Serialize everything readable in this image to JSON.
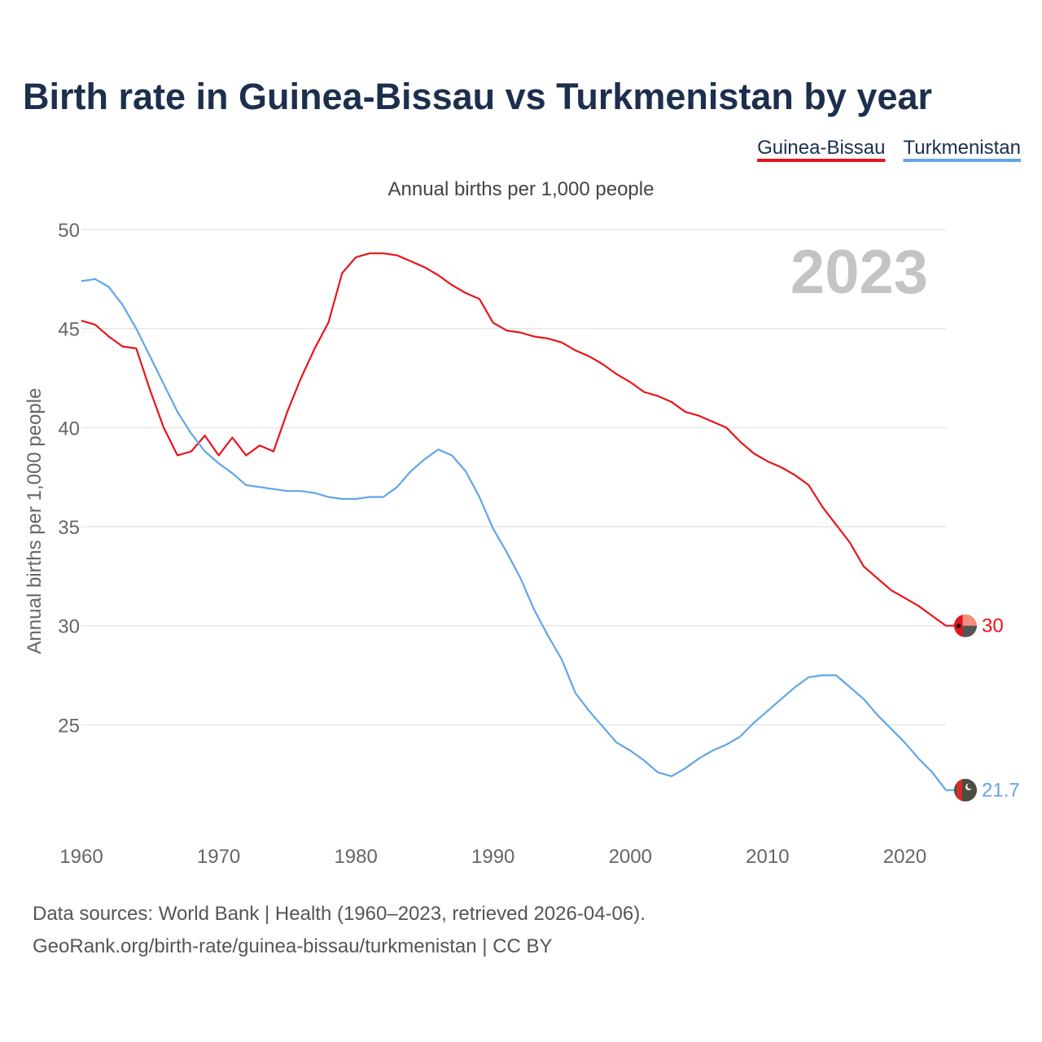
{
  "chart_data": {
    "type": "line",
    "title": "Birth rate in Guinea-Bissau vs Turkmenistan by year",
    "subtitle": "Annual births per 1,000 people",
    "ylabel": "Annual births per 1,000 people",
    "xlabel": "",
    "xlim": [
      1960,
      2023
    ],
    "ylim": [
      20,
      50
    ],
    "x_ticks": [
      "1960",
      "1970",
      "1980",
      "1990",
      "2000",
      "2010",
      "2020"
    ],
    "y_ticks": [
      "25",
      "30",
      "35",
      "40",
      "45",
      "50"
    ],
    "grid": true,
    "legend_position": "top-right",
    "year_watermark": "2023",
    "x": [
      1960,
      1961,
      1962,
      1963,
      1964,
      1965,
      1966,
      1967,
      1968,
      1969,
      1970,
      1971,
      1972,
      1973,
      1974,
      1975,
      1976,
      1977,
      1978,
      1979,
      1980,
      1981,
      1982,
      1983,
      1984,
      1985,
      1986,
      1987,
      1988,
      1989,
      1990,
      1991,
      1992,
      1993,
      1994,
      1995,
      1996,
      1997,
      1998,
      1999,
      2000,
      2001,
      2002,
      2003,
      2004,
      2005,
      2006,
      2007,
      2008,
      2009,
      2010,
      2011,
      2012,
      2013,
      2014,
      2015,
      2016,
      2017,
      2018,
      2019,
      2020,
      2021,
      2022,
      2023
    ],
    "series": [
      {
        "name": "Guinea-Bissau",
        "color": "#e8141b",
        "end_label": "30",
        "values": [
          45.4,
          45.2,
          44.6,
          44.1,
          44.0,
          41.9,
          40.0,
          38.6,
          38.8,
          39.6,
          38.6,
          39.5,
          38.6,
          39.1,
          38.8,
          40.8,
          42.5,
          44.0,
          45.3,
          47.8,
          48.6,
          48.8,
          48.8,
          48.7,
          48.4,
          48.1,
          47.7,
          47.2,
          46.8,
          46.5,
          45.3,
          44.9,
          44.8,
          44.6,
          44.5,
          44.3,
          43.9,
          43.6,
          43.2,
          42.7,
          42.3,
          41.8,
          41.6,
          41.3,
          40.8,
          40.6,
          40.3,
          40.0,
          39.3,
          38.7,
          38.3,
          38.0,
          37.6,
          37.1,
          36.0,
          35.1,
          34.2,
          33.0,
          32.4,
          31.8,
          31.4,
          31.0,
          30.5,
          30.0
        ]
      },
      {
        "name": "Turkmenistan",
        "color": "#62a5e8",
        "end_label": "21.7",
        "values": [
          47.4,
          47.5,
          47.1,
          46.2,
          45.0,
          43.6,
          42.2,
          40.8,
          39.7,
          38.8,
          38.2,
          37.7,
          37.1,
          37.0,
          36.9,
          36.8,
          36.8,
          36.7,
          36.5,
          36.4,
          36.4,
          36.5,
          36.5,
          37.0,
          37.8,
          38.4,
          38.9,
          38.6,
          37.8,
          36.5,
          34.9,
          33.7,
          32.4,
          30.8,
          29.5,
          28.3,
          26.6,
          25.7,
          24.9,
          24.1,
          23.7,
          23.2,
          22.6,
          22.4,
          22.8,
          23.3,
          23.7,
          24.0,
          24.4,
          25.1,
          25.7,
          26.3,
          26.9,
          27.4,
          27.5,
          27.5,
          26.9,
          26.3,
          25.5,
          24.8,
          24.1,
          23.3,
          22.6,
          21.7
        ]
      }
    ]
  },
  "footer": {
    "source_line": "Data sources: World Bank | Health (1960–2023, retrieved 2026-04-06).",
    "url_line": "GeoRank.org/birth-rate/guinea-bissau/turkmenistan | CC BY"
  },
  "flags": {
    "guinea_bissau": {
      "red": "#e8141b",
      "yellow": "#f2907d",
      "green": "#555555",
      "star": "#000000"
    },
    "turkmenistan": {
      "field": "#4c4c40",
      "stripe": "#d62b2b",
      "emblem": "#ffffff"
    }
  }
}
